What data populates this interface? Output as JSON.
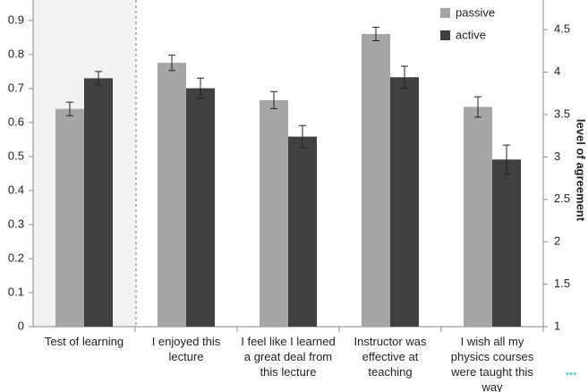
{
  "chart_data": {
    "type": "bar",
    "categories": [
      "Test of learning",
      "I enjoyed this\nlecture",
      "I feel like I learned\na great deal from\nthis lecture",
      "Instructor was\neffective at\nteaching",
      "I wish all my\nphysics courses\nwere taught this\nway"
    ],
    "category_axis": [
      "y",
      "y2",
      "y2",
      "y2",
      "y2"
    ],
    "series": [
      {
        "name": "passive",
        "color": "#a6a6a6",
        "values": [
          0.64,
          4.11,
          3.67,
          4.45,
          3.59
        ],
        "errors": [
          0.02,
          0.09,
          0.1,
          0.08,
          0.12
        ]
      },
      {
        "name": "active",
        "color": "#404040",
        "values": [
          0.73,
          3.81,
          3.24,
          3.94,
          2.97
        ],
        "errors": [
          0.02,
          0.12,
          0.13,
          0.13,
          0.17
        ]
      }
    ],
    "ylim": [
      0,
      0.96
    ],
    "yticks": [
      0,
      0.1,
      0.2,
      0.3,
      0.4,
      0.5,
      0.6,
      0.7,
      0.8,
      0.9
    ],
    "y2lim": [
      1,
      4.85
    ],
    "y2ticks": [
      1,
      1.5,
      2,
      2.5,
      3,
      3.5,
      4,
      4.5
    ],
    "y2label": "level of agreement",
    "annotation": "***",
    "grid": false,
    "legend": "top-right"
  }
}
